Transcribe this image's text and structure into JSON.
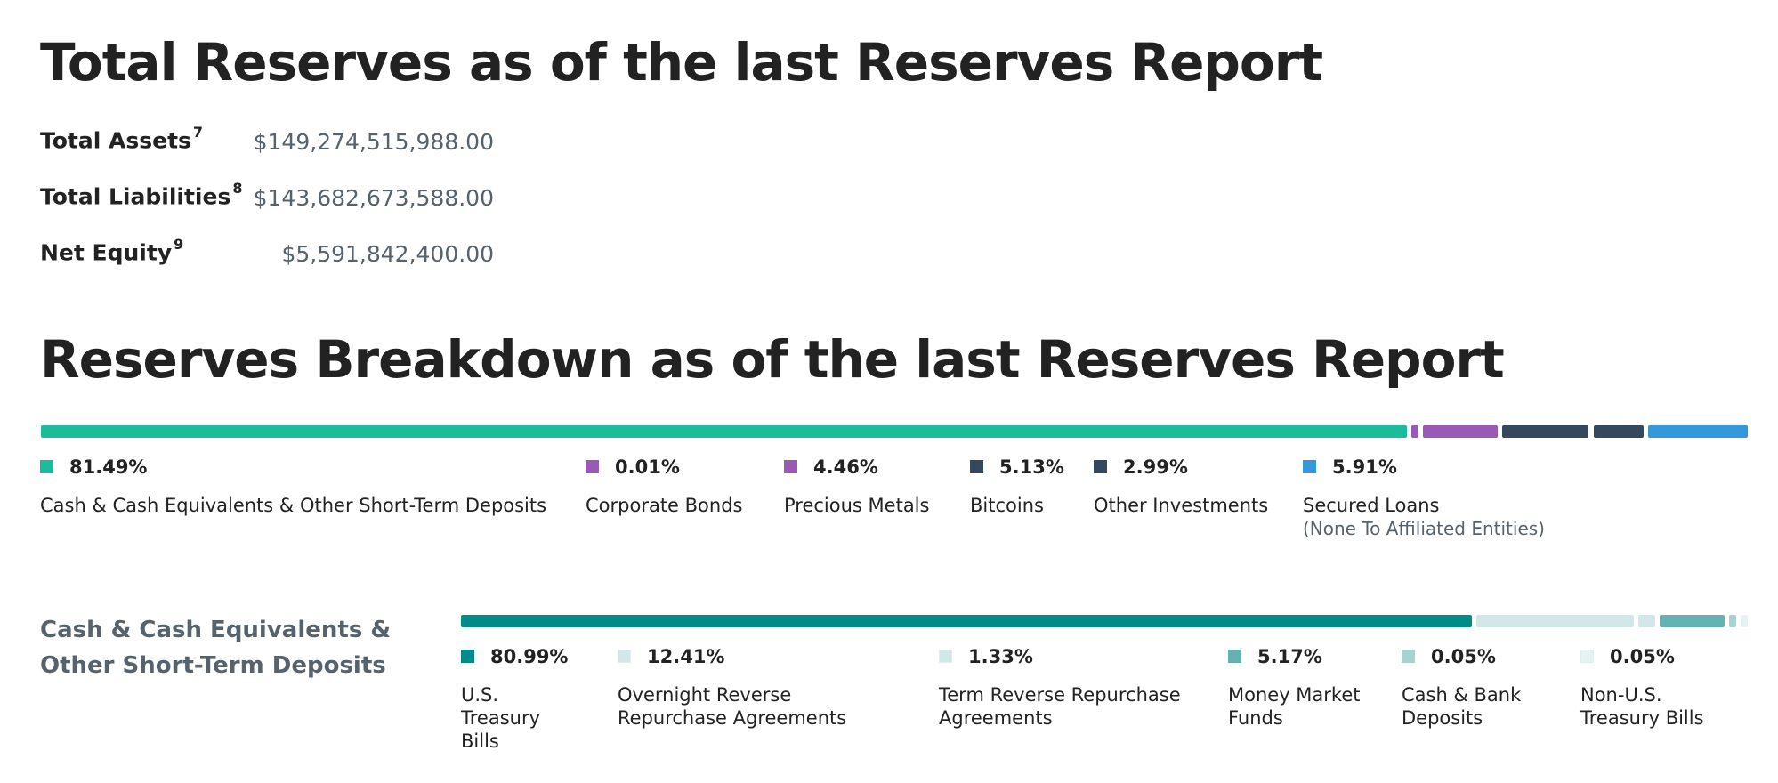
{
  "title": "Total Reserves as of the last Reserves Report",
  "summary": [
    {
      "label": "Total Assets",
      "note": "7",
      "value": "$149,274,515,988.00"
    },
    {
      "label": "Total Liabilities",
      "note": "8",
      "value": "$143,682,673,588.00"
    },
    {
      "label": "Net Equity",
      "note": "9",
      "value": "$5,591,842,400.00"
    }
  ],
  "chart_data": [
    {
      "type": "bar",
      "title": "Reserves Breakdown as of the last Reserves Report",
      "orientation": "stacked-horizontal",
      "categories": [
        "Cash & Cash Equivalents & Other Short-Term Deposits",
        "Corporate Bonds",
        "Precious Metals",
        "Bitcoins",
        "Other Investments",
        "Secured Loans"
      ],
      "sublabels": [
        "",
        "",
        "",
        "",
        "",
        "(None To Affiliated Entities)"
      ],
      "values": [
        81.49,
        0.01,
        4.46,
        5.13,
        2.99,
        5.91
      ],
      "labels": [
        "81.49%",
        "0.01%",
        "4.46%",
        "5.13%",
        "2.99%",
        "5.91%"
      ],
      "colors": [
        "#1abc9c",
        "#9b59b6",
        "#9b59b6",
        "#34495e",
        "#34495e",
        "#3498db"
      ],
      "unit": "%",
      "legend": "bottom"
    },
    {
      "type": "bar",
      "title": "Cash & Cash Equivalents & Other Short-Term Deposits",
      "orientation": "stacked-horizontal",
      "categories": [
        "U.S. Treasury Bills",
        "Overnight Reverse Repurchase Agreements",
        "Term Reverse Repurchase Agreements",
        "Money Market Funds",
        "Cash & Bank Deposits",
        "Non-U.S. Treasury Bills"
      ],
      "values": [
        80.99,
        12.41,
        1.33,
        5.17,
        0.05,
        0.05
      ],
      "labels": [
        "80.99%",
        "12.41%",
        "1.33%",
        "5.17%",
        "0.05%",
        "0.05%"
      ],
      "colors": [
        "#008b8b",
        "#d0e8e7",
        "#d0e8e7",
        "#66b2b2",
        "#a6d2d2",
        "#e6f3f3"
      ],
      "unit": "%",
      "legend": "bottom"
    }
  ]
}
